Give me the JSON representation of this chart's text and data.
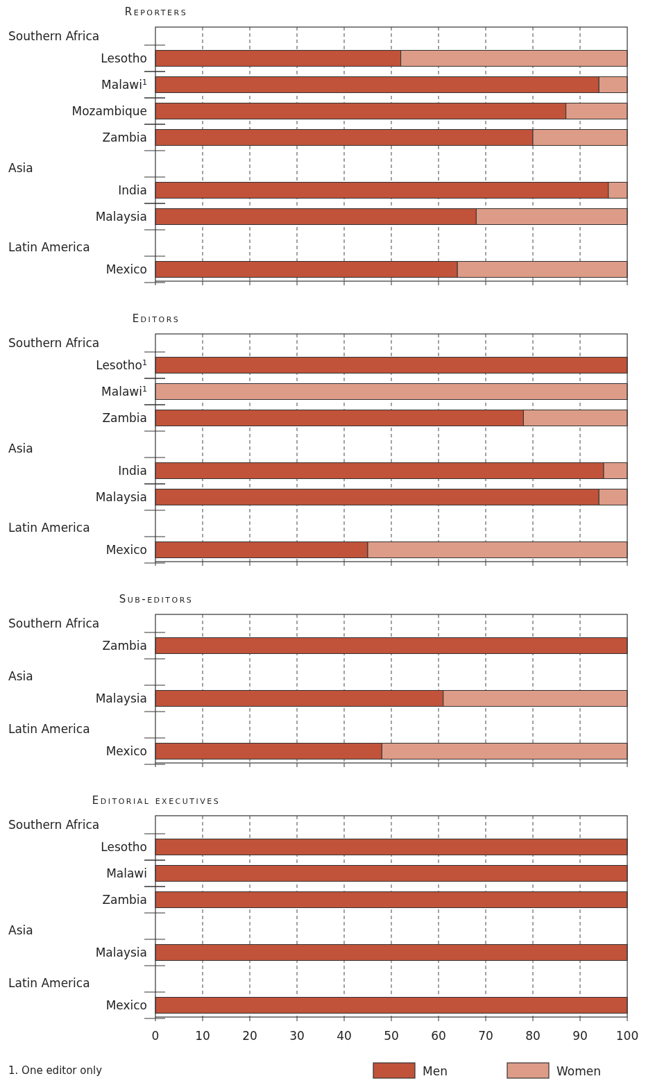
{
  "chart_data": [
    {
      "type": "bar",
      "orientation": "horizontal",
      "stacked": true,
      "title": "Reporters",
      "categories": [
        null,
        "Lesotho",
        "Malawi$^{1}$",
        "Mozambique",
        "Zambia",
        null,
        "India",
        "Malaysia",
        null,
        "Mexico"
      ],
      "annotations": [
        "Southern Africa",
        "Asia",
        "Latin America"
      ],
      "series": [
        {
          "name": "Men",
          "color": "#c0533a",
          "values": [
            null,
            52,
            94,
            87,
            80,
            null,
            96,
            68,
            null,
            64
          ]
        },
        {
          "name": "Women",
          "color": "#dd9c87",
          "values": [
            null,
            48,
            6,
            13,
            20,
            null,
            4,
            32,
            null,
            36
          ]
        }
      ],
      "xlim": [
        0,
        100
      ],
      "xticks": [
        0,
        10,
        20,
        30,
        40,
        50,
        60,
        70,
        80,
        90,
        100
      ],
      "grid": "x",
      "tick_labels": "y",
      "legend": "bottom"
    },
    {
      "type": "bar",
      "orientation": "horizontal",
      "stacked": true,
      "title": "Editors",
      "categories": [
        null,
        "Lesotho$^{1}$",
        "Malawi$^{1}$",
        "Zambia",
        null,
        "India",
        "Malaysia",
        null,
        "Mexico"
      ],
      "annotations": [
        "Southern Africa",
        "Asia",
        "Latin America"
      ],
      "series": [
        {
          "name": "Men",
          "color": "#c0533a",
          "values": [
            null,
            100,
            0,
            78,
            null,
            95,
            94,
            null,
            45
          ]
        },
        {
          "name": "Women",
          "color": "#dd9c87",
          "values": [
            null,
            0,
            100,
            22,
            null,
            5,
            6,
            null,
            55
          ]
        }
      ],
      "xlim": [
        0,
        100
      ],
      "xticks": [
        0,
        10,
        20,
        30,
        40,
        50,
        60,
        70,
        80,
        90,
        100
      ],
      "grid": "x",
      "tick_labels": "y",
      "legend": "bottom"
    },
    {
      "type": "bar",
      "orientation": "horizontal",
      "stacked": true,
      "title": "Sub-editors",
      "categories": [
        null,
        "Zambia",
        null,
        "Malaysia",
        null,
        "Mexico"
      ],
      "annotations": [
        "Southern Africa",
        "Asia",
        "Latin America"
      ],
      "series": [
        {
          "name": "Men",
          "color": "#c0533a",
          "values": [
            null,
            100,
            null,
            61,
            null,
            48
          ]
        },
        {
          "name": "Women",
          "color": "#dd9c87",
          "values": [
            null,
            0,
            null,
            39,
            null,
            52
          ]
        }
      ],
      "xlim": [
        0,
        100
      ],
      "xticks": [
        0,
        10,
        20,
        30,
        40,
        50,
        60,
        70,
        80,
        90,
        100
      ],
      "grid": "x",
      "tick_labels": "y",
      "legend": "bottom"
    },
    {
      "type": "bar",
      "orientation": "horizontal",
      "stacked": true,
      "title": "Editorial executives",
      "categories": [
        null,
        "Lesotho",
        "Malawi",
        "Zambia",
        null,
        "Malaysia",
        null,
        "Mexico"
      ],
      "annotations": [
        "Southern Africa",
        "Asia",
        "Latin America",
        "1. One editor only"
      ],
      "series": [
        {
          "name": "Men",
          "color": "#c0533a",
          "values": [
            null,
            100,
            100,
            100,
            null,
            100,
            null,
            100
          ]
        },
        {
          "name": "Women",
          "color": "#dd9c87",
          "values": [
            null,
            0,
            0,
            0,
            null,
            0,
            null,
            0
          ]
        }
      ],
      "xlim": [
        0,
        100
      ],
      "xticks": [
        0,
        10,
        20,
        30,
        40,
        50,
        60,
        70,
        80,
        90,
        100
      ],
      "grid": "x",
      "legend": "bottom"
    }
  ]
}
